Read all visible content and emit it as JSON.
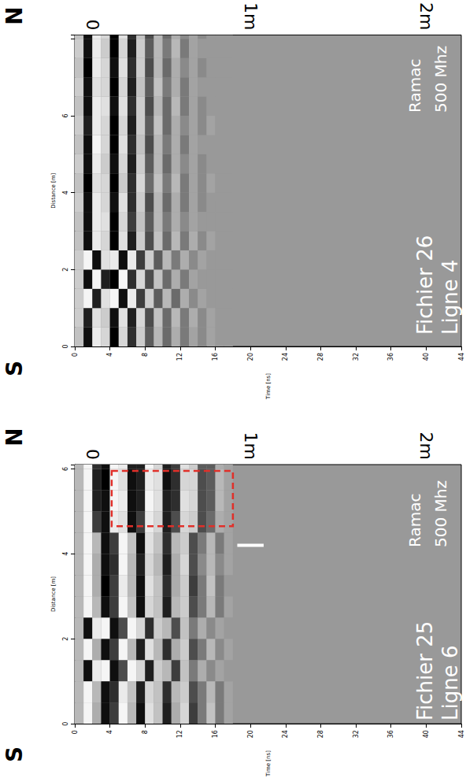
{
  "chart_data": [
    {
      "type": "heatmap",
      "title": "Fichier 26",
      "subtitle": "Ligne 4",
      "annotations": [
        "Ramac",
        "500 Mhz"
      ],
      "direction_labels": [
        "S",
        "N"
      ],
      "x_label": "Time [ns]",
      "y_label": "Distance [m]",
      "xlim": [
        0,
        44
      ],
      "xticks": [
        0,
        4,
        8,
        12,
        16,
        20,
        24,
        28,
        32,
        36,
        40,
        44
      ],
      "x2lim": [
        0,
        44
      ],
      "x2ticks": [
        {
          "value": 2,
          "label": "0"
        },
        {
          "value": 20,
          "label": "1m"
        },
        {
          "value": 40,
          "label": "2m"
        }
      ],
      "ylim": [
        0,
        8.1
      ],
      "yticks": [
        0,
        2,
        4,
        6
      ],
      "grid": false,
      "time_bins": [
        0,
        1,
        2,
        3,
        4,
        5,
        6,
        7,
        8,
        9,
        10,
        11,
        12,
        13,
        14,
        15,
        16,
        17,
        18
      ],
      "distance_bins": [
        0,
        0.5,
        1,
        1.5,
        2,
        2.5,
        3,
        3.5,
        4,
        4.5,
        5,
        5.5,
        6,
        6.5,
        7,
        7.5,
        8,
        8.1
      ],
      "amplitude": [
        [
          0.4,
          -0.9,
          0.8,
          0.6,
          -1,
          0.6,
          -0.7,
          0.5,
          -0.4,
          0.3,
          -0.3,
          0.2,
          -0.2,
          0.1,
          -0.1,
          0.1,
          0,
          0
        ],
        [
          0.5,
          -0.8,
          0.7,
          0.5,
          -0.9,
          0.7,
          -0.8,
          0.6,
          -0.5,
          0.4,
          -0.3,
          0.3,
          -0.2,
          0.2,
          -0.1,
          0.1,
          0,
          0
        ],
        [
          0.5,
          0.9,
          -0.8,
          0.7,
          0.9,
          -0.9,
          0.8,
          -0.6,
          0.5,
          -0.4,
          0.3,
          -0.3,
          0.2,
          -0.1,
          0.1,
          0,
          0,
          0
        ],
        [
          0.5,
          -0.9,
          0.9,
          -0.8,
          -1,
          0.9,
          -0.7,
          0.6,
          -0.5,
          0.4,
          -0.3,
          0.2,
          -0.2,
          0.1,
          0,
          0,
          0,
          0
        ],
        [
          0.5,
          0.9,
          -0.9,
          0.7,
          0.8,
          -0.9,
          0.8,
          -0.6,
          0.5,
          -0.4,
          0.3,
          -0.2,
          0.2,
          -0.1,
          0.1,
          0,
          0,
          0
        ],
        [
          0.4,
          -0.9,
          0.8,
          0.6,
          -1,
          0.7,
          -0.8,
          0.5,
          -0.5,
          0.4,
          -0.3,
          0.3,
          -0.2,
          0.2,
          -0.1,
          0.1,
          0,
          0
        ],
        [
          0.4,
          -0.9,
          0.8,
          0.7,
          -1,
          0.6,
          -0.6,
          0.4,
          -0.4,
          0.3,
          -0.2,
          0.2,
          -0.1,
          0.1,
          0,
          0,
          0,
          0
        ],
        [
          0.5,
          -0.9,
          0.8,
          0.6,
          -0.9,
          0.7,
          -0.7,
          0.5,
          -0.5,
          0.3,
          -0.3,
          0.2,
          -0.2,
          0.1,
          -0.1,
          0,
          0,
          0
        ],
        [
          0.4,
          -1,
          0.7,
          0.6,
          -1,
          0.5,
          -0.7,
          0.6,
          -0.3,
          0.4,
          -0.2,
          0.3,
          -0.2,
          0.1,
          -0.1,
          0.1,
          0,
          0
        ],
        [
          0.5,
          -0.9,
          0.8,
          0.5,
          -0.9,
          0.6,
          -0.8,
          0.5,
          -0.4,
          0.3,
          -0.3,
          0.2,
          -0.1,
          0.1,
          -0.1,
          0,
          0,
          0
        ],
        [
          0.4,
          -0.9,
          0.9,
          0.6,
          -1,
          0.7,
          -0.7,
          0.4,
          -0.5,
          0.3,
          -0.2,
          0.2,
          -0.2,
          0.1,
          0,
          0,
          0,
          0
        ],
        [
          0.5,
          -0.8,
          0.8,
          0.6,
          -1,
          0.6,
          -0.8,
          0.5,
          -0.4,
          0.4,
          -0.3,
          0.2,
          -0.1,
          0.1,
          -0.1,
          0.1,
          0,
          0
        ],
        [
          0.4,
          -0.9,
          0.8,
          0.7,
          -0.9,
          0.7,
          -0.7,
          0.5,
          -0.5,
          0.3,
          -0.3,
          0.3,
          -0.2,
          0.1,
          -0.1,
          0,
          0,
          0
        ],
        [
          0.5,
          -0.9,
          0.7,
          0.6,
          -1,
          0.6,
          -0.8,
          0.4,
          -0.4,
          0.4,
          -0.2,
          0.2,
          -0.2,
          0.1,
          0,
          0,
          0,
          0
        ],
        [
          0.4,
          -1,
          0.8,
          0.6,
          -0.9,
          0.7,
          -0.7,
          0.5,
          -0.5,
          0.3,
          -0.3,
          0.2,
          -0.1,
          0.1,
          -0.1,
          0,
          0,
          0
        ],
        [
          0.5,
          -0.9,
          0.8,
          0.5,
          -1,
          0.6,
          -0.8,
          0.5,
          -0.4,
          0.3,
          -0.2,
          0.3,
          -0.2,
          0.1,
          0,
          0,
          0,
          0
        ],
        [
          0.4,
          -0.9,
          0.8,
          0.6,
          -1,
          0.7,
          -0.7,
          0.4,
          -0.5,
          0.3,
          -0.3,
          0.2,
          -0.1,
          0.1,
          -0.1,
          0,
          0,
          0
        ]
      ]
    },
    {
      "type": "heatmap",
      "title": "Fichier 25",
      "subtitle": "Ligne 6",
      "annotations": [
        "Ramac",
        "500 Mhz"
      ],
      "direction_labels": [
        "S",
        "N"
      ],
      "x_label": "Time [ns]",
      "y_label": "Distance [m]",
      "xlim": [
        0,
        44
      ],
      "xticks": [
        0,
        4,
        8,
        12,
        16,
        20,
        24,
        28,
        32,
        36,
        40,
        44
      ],
      "x2lim": [
        0,
        44
      ],
      "x2ticks": [
        {
          "value": 2,
          "label": "0"
        },
        {
          "value": 20,
          "label": "1m"
        },
        {
          "value": 40,
          "label": "2m"
        }
      ],
      "ylim": [
        0,
        6.1
      ],
      "yticks": [
        0,
        2,
        4,
        6
      ],
      "grid": false,
      "time_bins": [
        0,
        1,
        2,
        3,
        4,
        5,
        6,
        7,
        8,
        9,
        10,
        11,
        12,
        13,
        14,
        15,
        16,
        17,
        18
      ],
      "distance_bins": [
        0,
        0.5,
        1,
        1.5,
        2,
        2.5,
        3,
        3.5,
        4,
        4.5,
        5,
        5.5,
        6,
        6.1
      ],
      "amplitude": [
        [
          0.3,
          0.9,
          0.2,
          -0.9,
          -0.6,
          0.9,
          0.3,
          -0.9,
          0.7,
          0.4,
          -0.8,
          0.2,
          0.6,
          -0.6,
          -0.2,
          0.4,
          -0.2,
          0.1
        ],
        [
          0.3,
          0.9,
          0.3,
          -0.9,
          -0.7,
          0.8,
          0.4,
          -0.8,
          0.6,
          0.4,
          -0.7,
          0.3,
          0.5,
          -0.5,
          -0.2,
          0.3,
          -0.2,
          0.1
        ],
        [
          0.3,
          -0.9,
          0.8,
          0.9,
          -0.9,
          -0.5,
          0.9,
          0.6,
          -0.8,
          0.5,
          0.3,
          -0.6,
          0.4,
          -0.2,
          0.2,
          -0.1,
          0.1,
          0
        ],
        [
          0.3,
          0.9,
          0.2,
          -0.9,
          -0.6,
          0.9,
          0.3,
          -0.8,
          0.7,
          0.3,
          -0.7,
          0.2,
          0.5,
          -0.5,
          -0.2,
          0.3,
          -0.1,
          0.1
        ],
        [
          0.3,
          -0.9,
          0.8,
          0.9,
          -0.9,
          -0.5,
          0.9,
          0.6,
          -0.7,
          0.5,
          0.3,
          -0.5,
          0.4,
          -0.2,
          0.2,
          -0.1,
          0.1,
          0
        ],
        [
          0.3,
          0.9,
          0.3,
          -0.9,
          -0.6,
          0.9,
          0.4,
          -0.9,
          0.6,
          0.4,
          -0.8,
          0.3,
          0.5,
          -0.5,
          -0.2,
          0.3,
          -0.2,
          0.1
        ],
        [
          0.3,
          0.9,
          0.2,
          -1,
          -0.6,
          0.8,
          0.3,
          -0.9,
          0.7,
          0.4,
          -0.7,
          0.2,
          0.5,
          -0.6,
          -0.2,
          0.4,
          -0.2,
          0
        ],
        [
          0.3,
          0.9,
          0.2,
          -0.9,
          -0.7,
          0.9,
          0.3,
          -0.8,
          0.6,
          0.3,
          -0.8,
          0.2,
          0.6,
          -0.5,
          -0.1,
          0.3,
          -0.1,
          0.1
        ],
        [
          0.3,
          0.9,
          0.3,
          -0.9,
          -0.6,
          0.9,
          0.4,
          -0.9,
          0.7,
          0.4,
          -0.7,
          0.3,
          0.5,
          -0.5,
          -0.2,
          0.3,
          -0.2,
          0.1
        ],
        [
          0.3,
          0.9,
          -0.6,
          -0.9,
          0.8,
          0.7,
          -0.9,
          -0.6,
          0.8,
          0.6,
          -0.8,
          -0.5,
          0.6,
          0.5,
          -0.5,
          -0.3,
          0.2,
          0.1
        ],
        [
          0.3,
          0.9,
          -0.8,
          -0.9,
          0.9,
          0.8,
          -0.9,
          -0.8,
          0.9,
          0.7,
          -0.8,
          -0.7,
          0.7,
          0.6,
          -0.5,
          -0.4,
          0.3,
          0.1
        ],
        [
          0.3,
          0.9,
          -0.8,
          -1,
          0.9,
          0.7,
          -0.9,
          -0.8,
          0.8,
          0.7,
          -0.9,
          -0.7,
          0.6,
          0.6,
          -0.5,
          -0.4,
          0.3,
          0.1
        ],
        [
          0.3,
          0.9,
          -0.7,
          -0.9,
          0.9,
          0.8,
          -0.8,
          -0.8,
          0.9,
          0.6,
          -0.8,
          -0.6,
          0.7,
          0.5,
          -0.4,
          -0.4,
          0.2,
          0.1
        ]
      ],
      "box": {
        "time": [
          4.2,
          18
        ],
        "distance": [
          4.65,
          5.95
        ],
        "color": "#e0302a",
        "line_style": "dashed"
      },
      "bar": {
        "time": [
          18.5,
          21.5
        ],
        "distance": 4.2,
        "color": "#ffffff"
      }
    }
  ]
}
